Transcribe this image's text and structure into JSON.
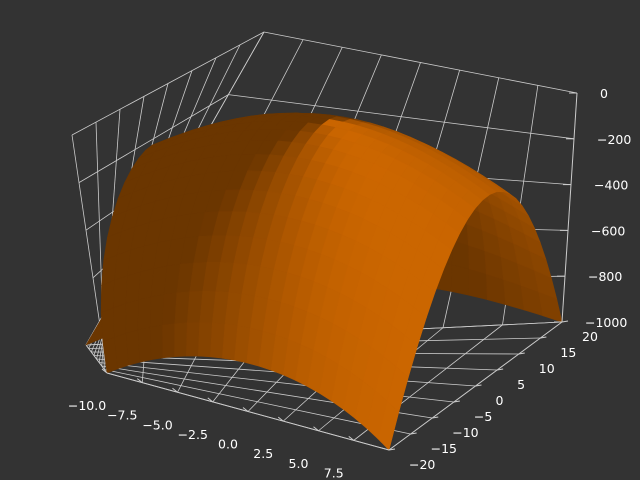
{
  "chart_data": {
    "type": "surface",
    "title": "",
    "xlabel": "",
    "ylabel": "",
    "zlabel": "",
    "xlim": [
      -10,
      10
    ],
    "ylim": [
      -20,
      20
    ],
    "zlim": [
      -1000,
      0
    ],
    "x_ticks": [
      "−10.0",
      "−7.5",
      "−5.0",
      "−2.5",
      "0.0",
      "2.5",
      "5.0",
      "7.5"
    ],
    "y_ticks": [
      "−20",
      "−15",
      "−10",
      "−5",
      "0",
      "5",
      "10",
      "15",
      "20"
    ],
    "z_ticks": [
      "0",
      "−200",
      "−400",
      "−600",
      "−800",
      "−1000"
    ],
    "surface": {
      "x_range": [
        -10,
        10
      ],
      "y_range": [
        -20,
        20
      ],
      "z_at_x0_y0": -30,
      "z_at_corners": -1000,
      "shape": "downward-opening paraboloid",
      "color": "#ff8000"
    },
    "grid": true,
    "background": "#333333",
    "pane_color": "#333333",
    "grid_color": "#cccccc",
    "label_color": "#ffffff"
  }
}
